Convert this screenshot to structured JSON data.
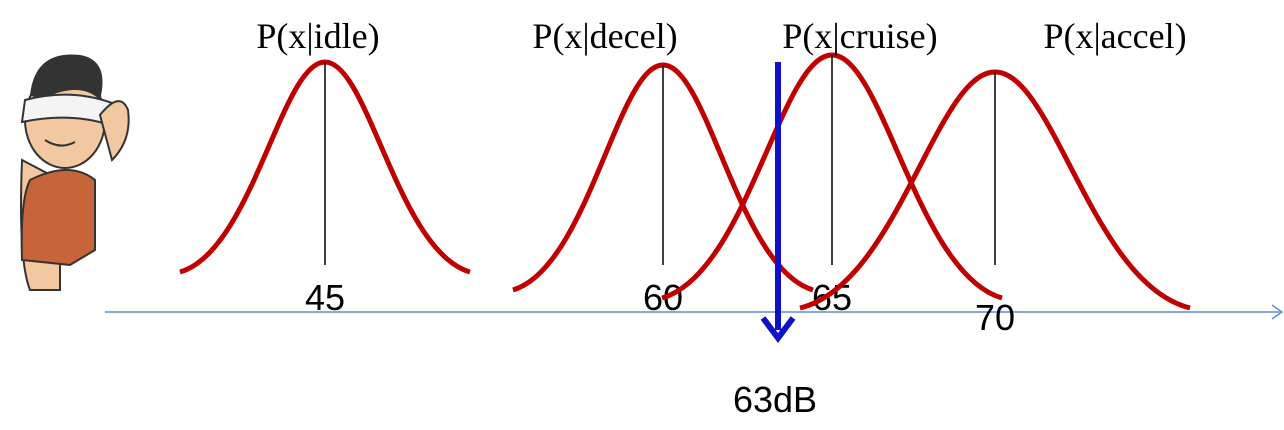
{
  "curves": [
    {
      "label": "P(x|idle)",
      "mean": "45"
    },
    {
      "label": "P(x|decel)",
      "mean": "60"
    },
    {
      "label": "P(x|cruise)",
      "mean": "65"
    },
    {
      "label": "P(x|accel)",
      "mean": "70"
    }
  ],
  "observation": "63dB"
}
